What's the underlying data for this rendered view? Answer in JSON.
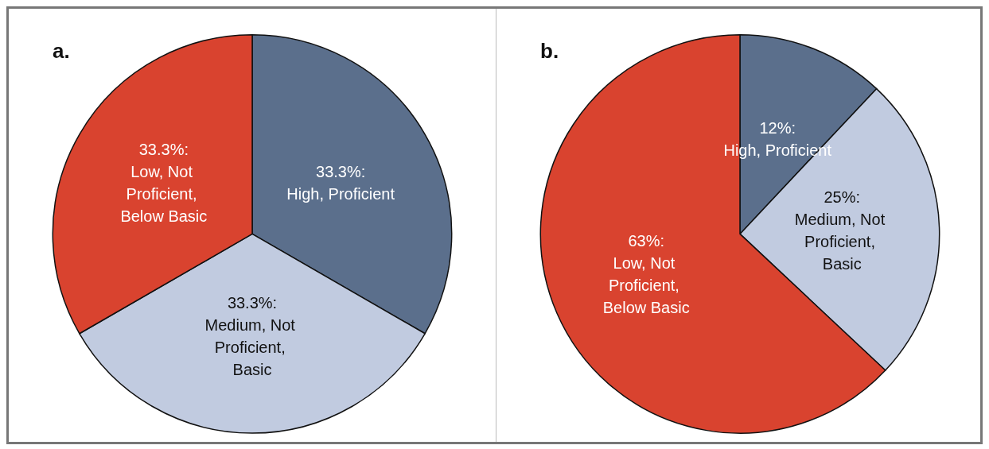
{
  "chart_data": [
    {
      "type": "pie",
      "title": "a.",
      "categories": [
        "High, Proficient",
        "Medium, Not Proficient, Basic",
        "Low, Not Proficient, Below Basic"
      ],
      "values": [
        33.3,
        33.3,
        33.3
      ],
      "colors": [
        "#5b6f8c",
        "#c1cbe0",
        "#d9432f"
      ],
      "value_labels": [
        "33.3%:",
        "33.3%:",
        "33.3%:"
      ]
    },
    {
      "type": "pie",
      "title": "b.",
      "categories": [
        "High, Proficient",
        "Medium, Not Proficient, Basic",
        "Low, Not Proficient, Below Basic"
      ],
      "values": [
        12,
        25,
        63
      ],
      "colors": [
        "#5b6f8c",
        "#c1cbe0",
        "#d9432f"
      ],
      "value_labels": [
        "12%:",
        "25%:",
        "63%:"
      ]
    }
  ]
}
